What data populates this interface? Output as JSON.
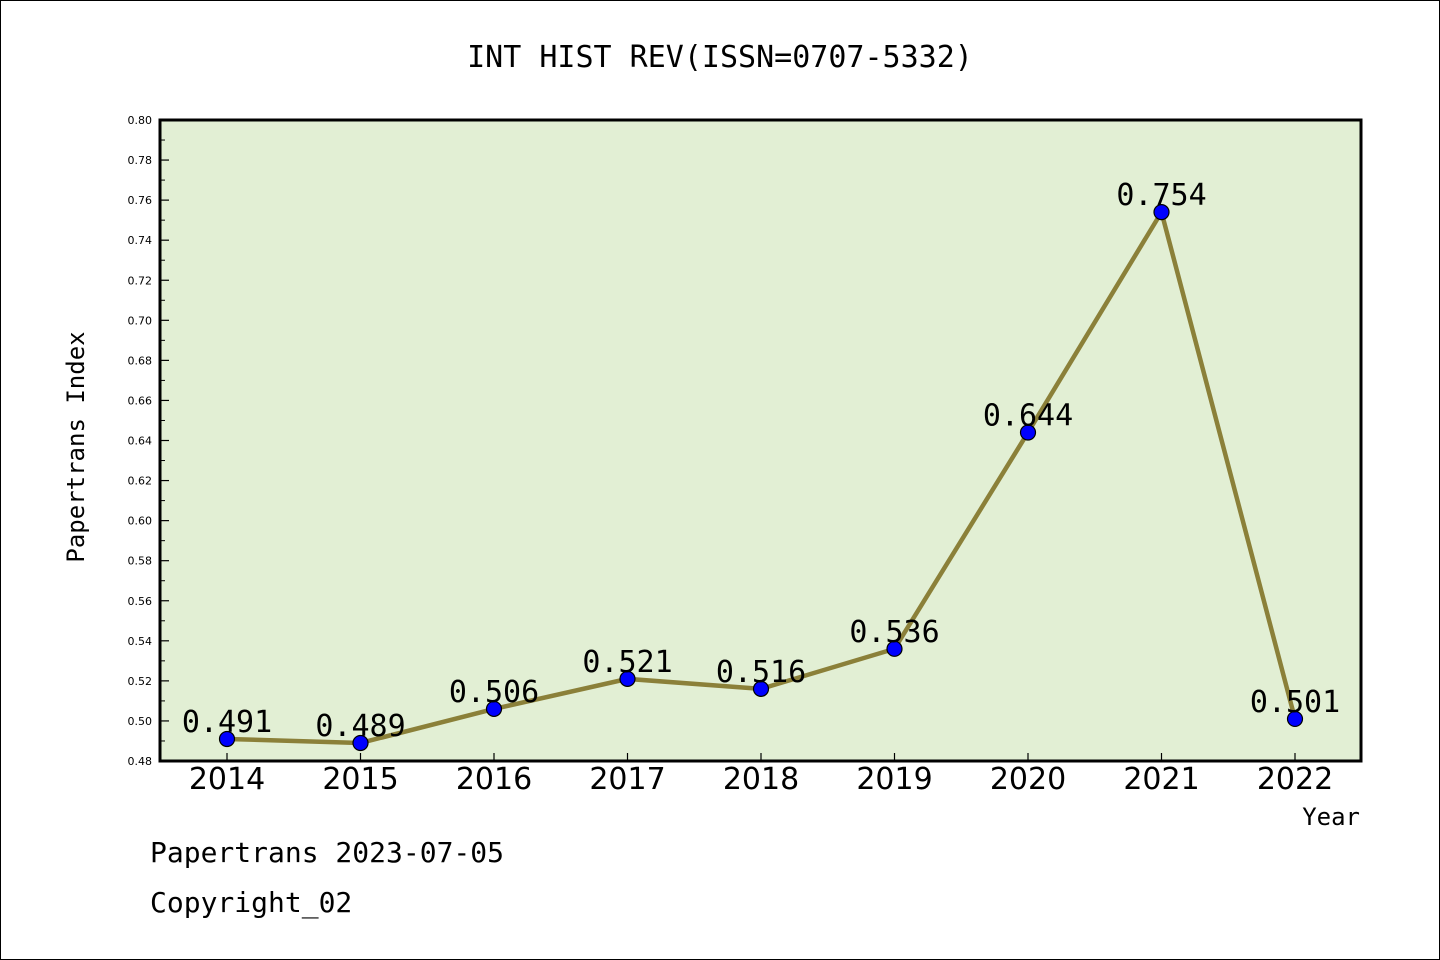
{
  "chart_data": {
    "type": "line",
    "title": "INT HIST REV(ISSN=0707-5332)",
    "xlabel": "Year",
    "ylabel": "Papertrans Index",
    "categories": [
      "2014",
      "2015",
      "2016",
      "2017",
      "2018",
      "2019",
      "2020",
      "2021",
      "2022"
    ],
    "values": [
      0.491,
      0.489,
      0.506,
      0.521,
      0.516,
      0.536,
      0.644,
      0.754,
      0.501
    ],
    "data_labels": [
      "0.491",
      "0.489",
      "0.506",
      "0.521",
      "0.516",
      "0.536",
      "0.644",
      "0.754",
      "0.501"
    ],
    "ylim": [
      0.48,
      0.8
    ],
    "yticks": [
      "0.48",
      "0.50",
      "0.52",
      "0.54",
      "0.56",
      "0.58",
      "0.60",
      "0.62",
      "0.64",
      "0.66",
      "0.68",
      "0.70",
      "0.72",
      "0.74",
      "0.76",
      "0.78",
      "0.80"
    ],
    "grid": false,
    "legend": "none",
    "colors": {
      "plot_background": "#e2efd4",
      "line": "#8b8039",
      "marker": "#0000ff"
    }
  },
  "footer": {
    "line1": "Papertrans 2023-07-05",
    "line2": "Copyright_02"
  }
}
